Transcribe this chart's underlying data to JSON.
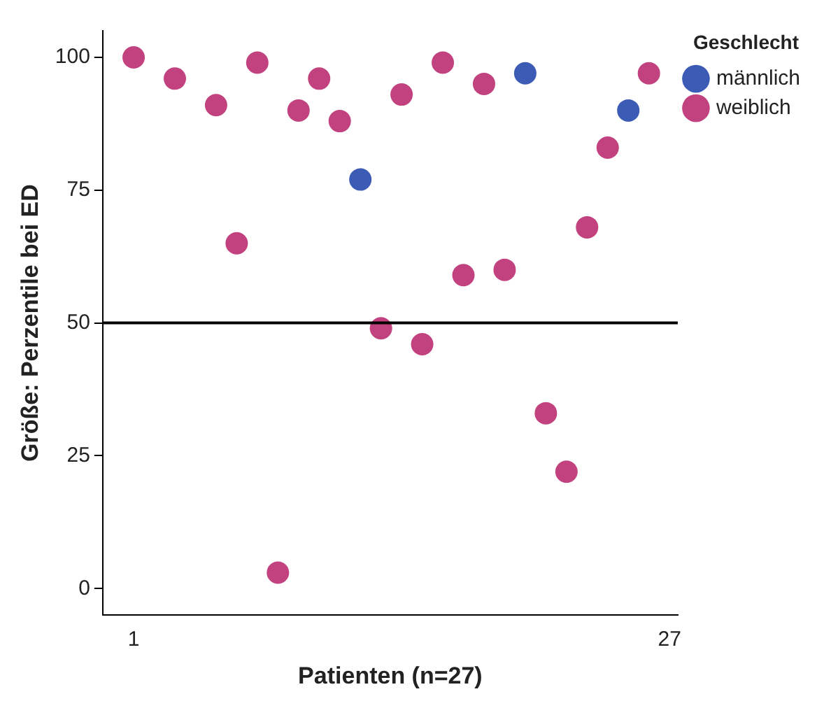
{
  "chart_data": {
    "type": "scatter",
    "xlabel": "Patienten (n=27)",
    "ylabel": "Größe: Perzentile bei ED",
    "legend_title": "Geschlecht",
    "legend": "top right",
    "marker": "circle",
    "grid": false,
    "xlim": [
      -0.5,
      27.4
    ],
    "xticks": [
      1,
      27
    ],
    "ylim": [
      -5,
      105
    ],
    "yticks": [
      0,
      25,
      50,
      75,
      100
    ],
    "series": [
      {
        "name": "männlich",
        "color": "#3c5bb5",
        "x": [
          12,
          20,
          25
        ],
        "values": [
          77,
          97,
          90
        ]
      },
      {
        "name": "weiblich",
        "color": "#c2427f",
        "x": [
          1,
          3,
          5,
          6,
          7,
          8,
          9,
          10,
          11,
          13,
          14,
          15,
          16,
          17,
          18,
          19,
          21,
          22,
          23,
          24,
          26
        ],
        "values": [
          100,
          96,
          91,
          65,
          99,
          3,
          90,
          96,
          88,
          49,
          93,
          46,
          99,
          59,
          95,
          60,
          33,
          22,
          68,
          83,
          97
        ]
      }
    ],
    "ref_lines": [
      {
        "axis": "y",
        "value": 50,
        "color": "#000000"
      }
    ]
  }
}
